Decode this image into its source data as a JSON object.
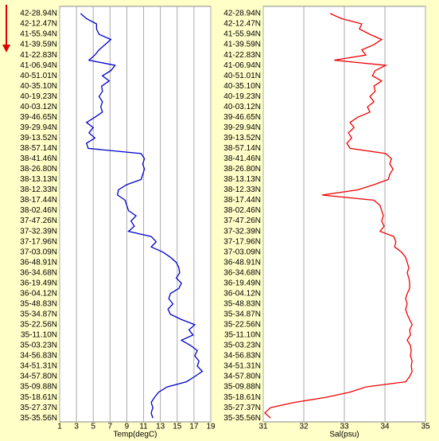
{
  "chart_data": [
    {
      "type": "line",
      "x_label": "Temp(degC)",
      "color": "#0000cc",
      "xlim": [
        1,
        19
      ],
      "xticks": [
        1,
        3,
        5,
        7,
        9,
        11,
        13,
        15,
        17,
        19
      ],
      "grid": true,
      "categories": [
        "42-28.94N",
        null,
        "42-12.47N",
        null,
        "41-55.94N",
        null,
        "41-39.59N",
        null,
        "41-22.83N",
        null,
        "41-06.94N",
        null,
        "40-51.01N",
        null,
        "40-35.10N",
        null,
        "40-19.23N",
        null,
        "40-03.12N",
        null,
        "39-46.65N",
        null,
        "39-29.94N",
        null,
        "39-13.52N",
        null,
        "38-57.14N",
        null,
        "38-41.46N",
        null,
        "38-26.80N",
        null,
        "38-13.13N",
        null,
        "38-12.33N",
        null,
        "38-17.44N",
        null,
        "38-02.46N",
        null,
        "37-47.26N",
        null,
        "37-32.39N",
        null,
        "37-17.96N",
        null,
        "37-03.09N",
        null,
        "36-48.91N",
        null,
        "36-34.68N",
        null,
        "36-19.49N",
        null,
        "36-04.12N",
        null,
        "35-48.83N",
        null,
        "35-34.87N",
        null,
        "35-22.56N",
        null,
        "35-11.10N",
        null,
        "35-03.23N",
        null,
        "34-56.83N",
        null,
        "34-51.31N",
        null,
        "34-57.80N",
        null,
        "35-09.88N",
        null,
        "35-18.61N",
        null,
        "35-27.37N",
        null,
        "35-35.56N"
      ],
      "values": [
        3.5,
        4.2,
        5.4,
        5.4,
        5.7,
        7.1,
        6.4,
        5.7,
        5.2,
        4.5,
        7.6,
        7.1,
        6.1,
        6.9,
        6.0,
        6.1,
        5.7,
        6.1,
        5.9,
        6.1,
        5.2,
        4.2,
        5.0,
        4.5,
        5.2,
        4.2,
        4.4,
        10.7,
        11.1,
        10.9,
        11.1,
        10.9,
        10.7,
        9.0,
        8.0,
        7.9,
        8.8,
        9.0,
        9.2,
        10.1,
        9.5,
        9.9,
        9.2,
        11.9,
        12.5,
        11.9,
        13.3,
        14.2,
        14.9,
        15.2,
        15.3,
        14.9,
        15.5,
        15.2,
        14.2,
        14.0,
        14.5,
        13.9,
        14.2,
        15.5,
        17.1,
        16.4,
        16.9,
        15.5,
        16.6,
        17.4,
        17.1,
        17.6,
        17.4,
        18.0,
        17.1,
        16.1,
        13.8,
        12.8,
        12.3,
        11.9,
        12.1,
        11.9,
        12.1
      ]
    },
    {
      "type": "line",
      "x_label": "Sal(psu)",
      "color": "#ee0000",
      "xlim": [
        31,
        35
      ],
      "xticks": [
        31,
        32,
        33,
        34,
        35
      ],
      "grid": true,
      "categories": [
        "42-28.94N",
        null,
        "42-12.47N",
        null,
        "41-55.94N",
        null,
        "41-39.59N",
        null,
        "41-22.83N",
        null,
        "41-06.94N",
        null,
        "40-51.01N",
        null,
        "40-35.10N",
        null,
        "40-19.23N",
        null,
        "40-03.12N",
        null,
        "39-46.65N",
        null,
        "39-29.94N",
        null,
        "39-13.52N",
        null,
        "38-57.14N",
        null,
        "38-41.46N",
        null,
        "38-26.80N",
        null,
        "38-13.13N",
        null,
        "38-12.33N",
        null,
        "38-17.44N",
        null,
        "38-02.46N",
        null,
        "37-47.26N",
        null,
        "37-32.39N",
        null,
        "37-17.96N",
        null,
        "37-03.09N",
        null,
        "36-48.91N",
        null,
        "36-34.68N",
        null,
        "36-19.49N",
        null,
        "36-04.12N",
        null,
        "35-48.83N",
        null,
        "35-34.87N",
        null,
        "35-22.56N",
        null,
        "35-11.10N",
        null,
        "35-03.23N",
        null,
        "34-56.83N",
        null,
        "34-51.31N",
        null,
        "34-57.80N",
        null,
        "35-09.88N",
        null,
        "35-18.61N",
        null,
        "35-27.37N",
        null,
        "35-35.56N"
      ],
      "values": [
        32.65,
        32.94,
        33.43,
        33.37,
        33.63,
        33.92,
        33.73,
        33.43,
        33.53,
        32.75,
        34.02,
        33.76,
        33.69,
        33.92,
        33.73,
        33.76,
        33.63,
        33.73,
        33.57,
        33.63,
        33.33,
        33.14,
        33.24,
        33.1,
        33.18,
        33.06,
        33.14,
        34.02,
        34.16,
        34.12,
        34.2,
        34.12,
        34.08,
        33.73,
        33.33,
        32.45,
        33.73,
        33.88,
        33.92,
        33.96,
        33.92,
        33.98,
        33.88,
        34.22,
        34.27,
        34.24,
        34.41,
        34.51,
        34.55,
        34.59,
        34.55,
        34.59,
        34.61,
        34.61,
        34.55,
        34.51,
        34.55,
        34.51,
        34.55,
        34.61,
        34.67,
        34.61,
        34.63,
        34.55,
        34.63,
        34.65,
        34.63,
        34.67,
        34.65,
        34.67,
        34.61,
        34.51,
        33.53,
        33.14,
        32.55,
        31.76,
        31.18,
        31.04,
        31.18
      ]
    }
  ]
}
